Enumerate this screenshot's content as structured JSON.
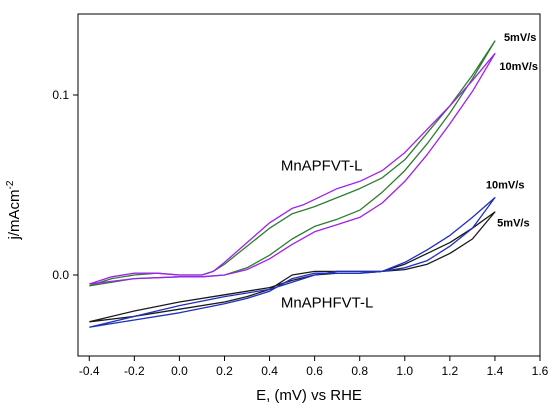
{
  "chart_data": {
    "type": "line",
    "xlabel": "E, (mV) vs RHE",
    "ylabel": "j/mAcm",
    "ylabel_superscript": "-2",
    "xlim": [
      -0.45,
      1.6
    ],
    "ylim": [
      -0.045,
      0.145
    ],
    "x_ticks": [
      -0.4,
      -0.2,
      0.0,
      0.2,
      0.4,
      0.6,
      0.8,
      1.0,
      1.2,
      1.4,
      1.6
    ],
    "x_tick_labels": [
      "-0.4",
      "-0.2",
      "0.0",
      "0.2",
      "0.4",
      "0.6",
      "0.8",
      "1.0",
      "1.2",
      "1.4",
      "1.6"
    ],
    "y_ticks": [
      0.0,
      0.1
    ],
    "y_tick_labels": [
      "0.0",
      "0.1"
    ],
    "grid": false,
    "annotations": [
      {
        "text": "MnAPFVT-L",
        "x": 0.45,
        "y": 0.058
      },
      {
        "text": "MnAPHFVT-L",
        "x": 0.45,
        "y": -0.018
      },
      {
        "text": "5mV/s",
        "x": 1.44,
        "y": 0.13
      },
      {
        "text": "10mV/s",
        "x": 1.42,
        "y": 0.114
      },
      {
        "text": "10mV/s",
        "x": 1.36,
        "y": 0.048
      },
      {
        "text": "5mV/s",
        "x": 1.41,
        "y": 0.027
      }
    ],
    "series": [
      {
        "color": "#2e7d32",
        "points": [
          [
            -0.4,
            -0.006
          ],
          [
            -0.3,
            -0.002
          ],
          [
            -0.2,
            0.0
          ],
          [
            -0.1,
            0.001
          ],
          [
            0.0,
            0.0
          ],
          [
            0.1,
            0.0
          ],
          [
            0.15,
            0.002
          ],
          [
            0.2,
            0.006
          ],
          [
            0.3,
            0.016
          ],
          [
            0.4,
            0.026
          ],
          [
            0.5,
            0.034
          ],
          [
            0.55,
            0.036
          ],
          [
            0.6,
            0.038
          ],
          [
            0.7,
            0.043
          ],
          [
            0.8,
            0.048
          ],
          [
            0.9,
            0.054
          ],
          [
            1.0,
            0.064
          ],
          [
            1.1,
            0.079
          ],
          [
            1.2,
            0.094
          ],
          [
            1.3,
            0.111
          ],
          [
            1.4,
            0.13
          ],
          [
            1.3,
            0.109
          ],
          [
            1.2,
            0.09
          ],
          [
            1.1,
            0.073
          ],
          [
            1.0,
            0.058
          ],
          [
            0.9,
            0.046
          ],
          [
            0.8,
            0.036
          ],
          [
            0.7,
            0.031
          ],
          [
            0.6,
            0.027
          ],
          [
            0.5,
            0.02
          ],
          [
            0.4,
            0.011
          ],
          [
            0.3,
            0.004
          ],
          [
            0.2,
            0.0
          ],
          [
            0.1,
            -0.001
          ],
          [
            0.0,
            -0.001
          ],
          [
            -0.2,
            -0.002
          ],
          [
            -0.4,
            -0.006
          ]
        ]
      },
      {
        "color": "#a020f0",
        "points": [
          [
            -0.4,
            -0.005
          ],
          [
            -0.3,
            -0.001
          ],
          [
            -0.2,
            0.001
          ],
          [
            -0.1,
            0.001
          ],
          [
            0.0,
            0.0
          ],
          [
            0.1,
            0.0
          ],
          [
            0.15,
            0.002
          ],
          [
            0.2,
            0.007
          ],
          [
            0.3,
            0.018
          ],
          [
            0.4,
            0.029
          ],
          [
            0.5,
            0.037
          ],
          [
            0.55,
            0.039
          ],
          [
            0.6,
            0.042
          ],
          [
            0.7,
            0.048
          ],
          [
            0.8,
            0.052
          ],
          [
            0.9,
            0.058
          ],
          [
            1.0,
            0.068
          ],
          [
            1.1,
            0.081
          ],
          [
            1.2,
            0.094
          ],
          [
            1.3,
            0.108
          ],
          [
            1.4,
            0.123
          ],
          [
            1.3,
            0.102
          ],
          [
            1.2,
            0.084
          ],
          [
            1.1,
            0.067
          ],
          [
            1.0,
            0.052
          ],
          [
            0.9,
            0.04
          ],
          [
            0.8,
            0.032
          ],
          [
            0.7,
            0.028
          ],
          [
            0.6,
            0.024
          ],
          [
            0.5,
            0.017
          ],
          [
            0.4,
            0.009
          ],
          [
            0.3,
            0.003
          ],
          [
            0.2,
            0.0
          ],
          [
            0.1,
            -0.001
          ],
          [
            0.0,
            -0.001
          ],
          [
            -0.2,
            -0.002
          ],
          [
            -0.4,
            -0.005
          ]
        ]
      },
      {
        "color": "#1a1a1a",
        "points": [
          [
            -0.4,
            -0.026
          ],
          [
            -0.2,
            -0.02
          ],
          [
            0.0,
            -0.015
          ],
          [
            0.2,
            -0.011
          ],
          [
            0.4,
            -0.007
          ],
          [
            0.5,
            -0.003
          ],
          [
            0.6,
            0.0
          ],
          [
            0.7,
            0.001
          ],
          [
            0.8,
            0.001
          ],
          [
            0.9,
            0.002
          ],
          [
            1.0,
            0.006
          ],
          [
            1.1,
            0.012
          ],
          [
            1.2,
            0.018
          ],
          [
            1.3,
            0.026
          ],
          [
            1.4,
            0.035
          ],
          [
            1.3,
            0.02
          ],
          [
            1.2,
            0.012
          ],
          [
            1.1,
            0.006
          ],
          [
            1.0,
            0.003
          ],
          [
            0.9,
            0.002
          ],
          [
            0.8,
            0.002
          ],
          [
            0.7,
            0.002
          ],
          [
            0.6,
            0.002
          ],
          [
            0.5,
            0.0
          ],
          [
            0.4,
            -0.008
          ],
          [
            0.3,
            -0.012
          ],
          [
            0.2,
            -0.015
          ],
          [
            0.0,
            -0.019
          ],
          [
            -0.2,
            -0.023
          ],
          [
            -0.4,
            -0.026
          ]
        ]
      },
      {
        "color": "#1e2fbf",
        "points": [
          [
            -0.4,
            -0.029
          ],
          [
            -0.2,
            -0.023
          ],
          [
            0.0,
            -0.017
          ],
          [
            0.2,
            -0.012
          ],
          [
            0.4,
            -0.008
          ],
          [
            0.5,
            -0.004
          ],
          [
            0.6,
            0.0
          ],
          [
            0.7,
            0.002
          ],
          [
            0.8,
            0.002
          ],
          [
            0.9,
            0.002
          ],
          [
            1.0,
            0.007
          ],
          [
            1.1,
            0.014
          ],
          [
            1.2,
            0.022
          ],
          [
            1.3,
            0.032
          ],
          [
            1.4,
            0.043
          ],
          [
            1.3,
            0.026
          ],
          [
            1.2,
            0.016
          ],
          [
            1.1,
            0.008
          ],
          [
            1.0,
            0.004
          ],
          [
            0.9,
            0.002
          ],
          [
            0.8,
            0.001
          ],
          [
            0.7,
            0.001
          ],
          [
            0.6,
            0.001
          ],
          [
            0.5,
            -0.002
          ],
          [
            0.4,
            -0.009
          ],
          [
            0.3,
            -0.013
          ],
          [
            0.2,
            -0.016
          ],
          [
            0.0,
            -0.021
          ],
          [
            -0.2,
            -0.025
          ],
          [
            -0.4,
            -0.029
          ]
        ]
      }
    ]
  }
}
